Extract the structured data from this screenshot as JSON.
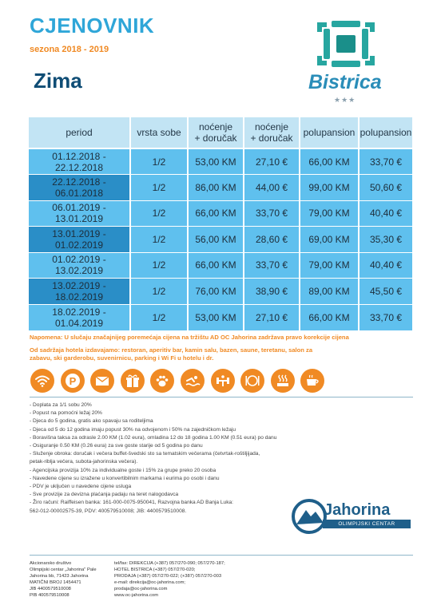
{
  "header": {
    "title": "CJENOVNIK",
    "season": "sezona 2018 - 2019",
    "subtitle": "Zima"
  },
  "logo": {
    "brand": "Bistrica",
    "stars": "★★★",
    "brand_color": "#2a8db8",
    "mark_color": "#27a6a0"
  },
  "table": {
    "headers": [
      "period",
      "vrsta sobe",
      "noćenje\n+ doručak",
      "noćenje\n+ doručak",
      "polupansion",
      "polupansion"
    ],
    "rows": [
      [
        "01.12.2018 - 22.12.2018",
        "1/2",
        "53,00 KM",
        "27,10 €",
        "66,00 KM",
        "33,70 €"
      ],
      [
        "22.12.2018 - 06.01.2018",
        "1/2",
        "86,00 KM",
        "44,00 €",
        "99,00 KM",
        "50,60 €"
      ],
      [
        "06.01.2019 - 13.01.2019",
        "1/2",
        "66,00 KM",
        "33,70 €",
        "79,00 KM",
        "40,40 €"
      ],
      [
        "13.01.2019 - 01.02.2019",
        "1/2",
        "56,00 KM",
        "28,60 €",
        "69,00 KM",
        "35,30 €"
      ],
      [
        "01.02.2019 - 13.02.2019",
        "1/2",
        "66,00 KM",
        "33,70 €",
        "79,00 KM",
        "40,40 €"
      ],
      [
        "13.02.2019 - 18.02.2019",
        "1/2",
        "76,00 KM",
        "38,90 €",
        "89,00 KM",
        "45,50 €"
      ],
      [
        "18.02.2019 - 01.04.2019",
        "1/2",
        "53,00 KM",
        "27,10 €",
        "66,00 KM",
        "33,70 €"
      ]
    ],
    "colors": {
      "header_bg": "#c2e4f4",
      "cell_bg": "#5fc0ee",
      "period_dark": "#2a8ec7"
    }
  },
  "note": "Napomena: U slučaju značajnijeg poremećaja cijena na tržištu AD OC Jahorina zadržava pravo korekcije cijena",
  "amenities": "Od sadržaja hotela izdavajamo: restoran, aperitiv bar, kamin salu, bazen, saune, teretanu, salon za zabavu, ski garderobu, suvenirnicu, parking i Wi Fi u hotelu i dr.",
  "amenity_icons": [
    "wifi-icon",
    "parking-icon",
    "mail-icon",
    "gift-icon",
    "paw-icon",
    "swimming-icon",
    "fitness-icon",
    "restaurant-icon",
    "sauna-icon",
    "coffee-icon"
  ],
  "accent_color": "#f08a24",
  "info_list": [
    "- Doplata za 1/1 sobu 20%",
    "- Popust na pomoćni ležaj 20%",
    "- Djeca do 5 godina, gratis ako spavaju sa roditeljima",
    "- Djeca od 5 do 12 godina imaju popust 30% na odvojenom i 50% na zajedničkom ležaju",
    "- Boravišna taksa za odrasle 2.00 KM (1.02 eura), omladina 12 do 18 godina 1.00 KM (0.51 eura) po danu",
    "- Osiguranje 0.50 KM (0.26 eura) za sve goste starije od 5 godina po danu",
    "- Služenje obroka: doručak i večera buffet-švedski sto sa tematskim večerama (četvrtak-roštiljijada,",
    "  petak-riblja večera, subota-jahorinska večera).",
    "-  Agencijska provizija 10% za individualne goste i 15% za grupe preko 20 osoba",
    "- Navedene cijene su izražene u konvertibilnim markama i eurima po osobi i danu",
    "- PDV je uključen u navedene cijene usluga",
    "- Sve provizije za devizna plaćanja padaju na teret nalogodavca",
    "- Žiro računi: Raiffeisen banka: 161-000-0075-950041, Razvojna banka AD Banja Luka:",
    "562-012-00002575-39, PDV: 400579510008; JIB: 4400579510008."
  ],
  "jahorina": {
    "name": "Jahorina",
    "tagline": "OLIMPIJSKI CENTAR"
  },
  "footer": {
    "left": [
      "Akcionarsko društvo",
      "Olimpijski centar „Jahorina\" Pale",
      "Jahorina bb, 71423 Jahorina",
      "MATIČNI BROJ 1454471",
      "JIB 4400579510008",
      "PIB 400579510008"
    ],
    "right": [
      "tel/fax: DIREKCIJA (+387) 057/270-090; 057/270-187;",
      "HOTEL BISTRICA (+387) 057/270-020;",
      "PRODAJA (+387) 057/270-022; (+387) 057/270-003",
      "e-mail: direkcija@oc-jahorina.com;",
      "prodaja@oc-jahorina.com",
      "www.oc-jahorina.com"
    ]
  }
}
